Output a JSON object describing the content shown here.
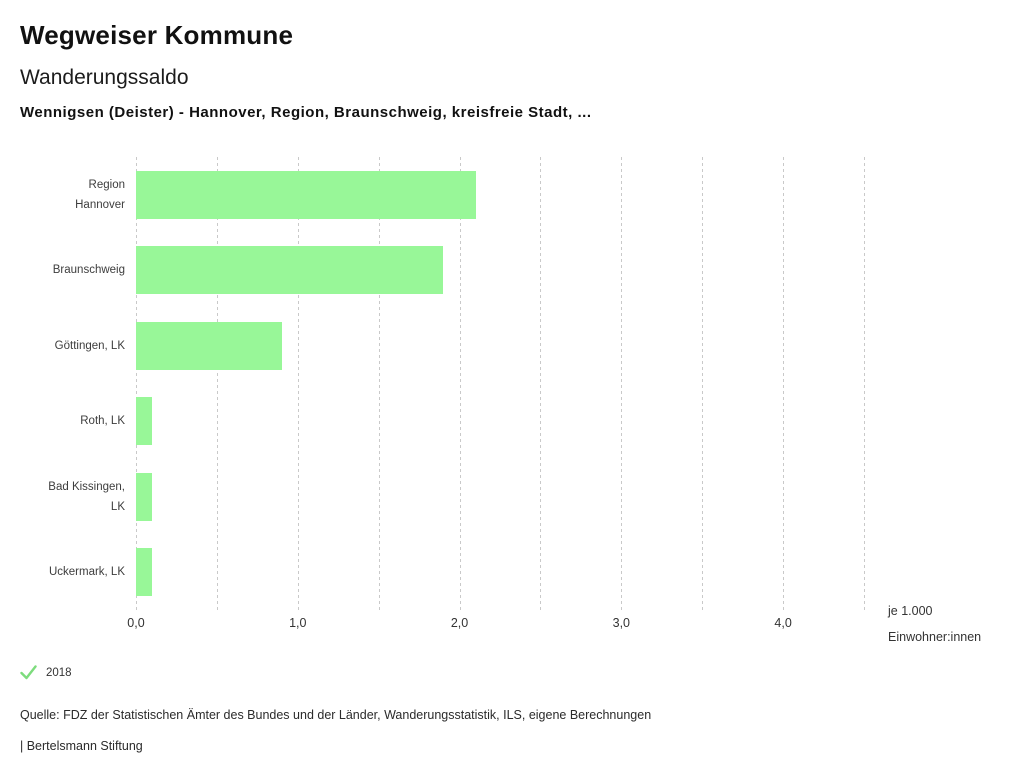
{
  "header": {
    "title": "Wegweiser Kommune",
    "subtitle": "Wanderungssaldo",
    "description": "Wennigsen (Deister) - Hannover, Region, Braunschweig, kreisfreie Stadt, ..."
  },
  "chart_data": {
    "type": "bar",
    "orientation": "horizontal",
    "title": "Wanderungssaldo",
    "categories": [
      "Region Hannover",
      "Braunschweig",
      "Göttingen, LK",
      "Roth, LK",
      "Bad Kissingen, LK",
      "Uckermark, LK"
    ],
    "category_lines": [
      [
        "Region",
        "Hannover"
      ],
      [
        "Braunschweig"
      ],
      [
        "Göttingen, LK"
      ],
      [
        "Roth, LK"
      ],
      [
        "Bad Kissingen,",
        "LK"
      ],
      [
        "Uckermark, LK"
      ]
    ],
    "values": [
      2.1,
      1.9,
      0.9,
      0.1,
      0.1,
      0.1
    ],
    "series_name": "2018",
    "xlim": [
      0,
      4.5
    ],
    "gridline_step": 0.5,
    "grid": true,
    "x_ticks": [
      0,
      1,
      2,
      3,
      4
    ],
    "x_tick_labels": [
      "0,0",
      "1,0",
      "2,0",
      "3,0",
      "4,0"
    ],
    "unit_label_line1": "je 1.000",
    "unit_label_line2": "Einwohner:innen",
    "bar_color": "#98f798",
    "grid_color": "#c9c9c9",
    "legend_marker_color": "#7ddc7d"
  },
  "footer": {
    "legend_year": "2018",
    "source": "Quelle: FDZ der Statistischen Ämter des Bundes und der Länder, Wanderungsstatistik, ILS, eigene Berechnungen",
    "branding": "| Bertelsmann Stiftung"
  }
}
